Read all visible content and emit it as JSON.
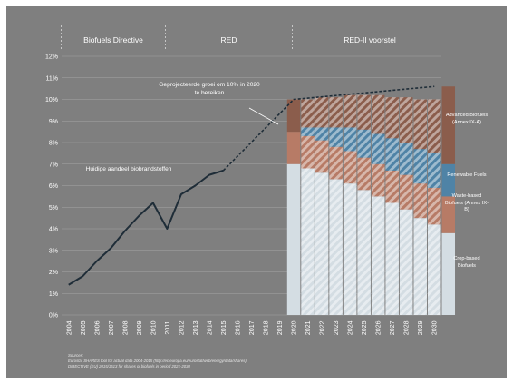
{
  "chart_data": {
    "type": "area",
    "x": [
      "2004",
      "2005",
      "2006",
      "2007",
      "2008",
      "2009",
      "2010",
      "2011",
      "2012",
      "2013",
      "2014",
      "2015",
      "2016",
      "2017",
      "2018",
      "2019",
      "2020",
      "2021",
      "2022",
      "2023",
      "2024",
      "2025",
      "2026",
      "2027",
      "2028",
      "2029",
      "2030"
    ],
    "y_ticks": [
      "0%",
      "1%",
      "2%",
      "3%",
      "4%",
      "5%",
      "6%",
      "7%",
      "8%",
      "9%",
      "10%",
      "11%",
      "12%"
    ],
    "ylim": [
      0,
      12
    ],
    "grid": true,
    "historical_share": {
      "label": "Huidige aandeel biobrandstoffen",
      "x": [
        "2004",
        "2005",
        "2006",
        "2007",
        "2008",
        "2009",
        "2010",
        "2011",
        "2012",
        "2013",
        "2014",
        "2015"
      ],
      "values": [
        1.4,
        1.8,
        2.5,
        3.1,
        3.9,
        4.6,
        5.2,
        4.0,
        5.6,
        6.0,
        6.5,
        6.7
      ]
    },
    "projected_growth": {
      "label": "Geprojecteerde groei om 10% in 2020 te bereiken",
      "x": [
        "2015",
        "2020",
        "2030"
      ],
      "values": [
        6.7,
        10.0,
        10.6
      ]
    },
    "proposal_series": [
      {
        "name": "Crop-based Biofuels",
        "color": "#d4dde3",
        "values": [
          7.0,
          6.8,
          6.6,
          6.3,
          6.1,
          5.8,
          5.5,
          5.2,
          4.9,
          4.5,
          4.2,
          3.8
        ]
      },
      {
        "name": "Waste-based Biofuels (Annex IX-B)",
        "color": "#b77b66",
        "values": [
          1.5,
          1.5,
          1.5,
          1.5,
          1.5,
          1.5,
          1.5,
          1.5,
          1.6,
          1.6,
          1.7,
          1.7
        ]
      },
      {
        "name": "Renewable Fuels",
        "color": "#4f83a6",
        "values": [
          0.0,
          0.4,
          0.6,
          0.9,
          1.1,
          1.3,
          1.4,
          1.5,
          1.5,
          1.6,
          1.6,
          1.5
        ]
      },
      {
        "name": "Advanced Biofuels (Annex IX-A)",
        "color": "#8b5d4c",
        "values": [
          1.5,
          1.3,
          1.4,
          1.4,
          1.5,
          1.6,
          1.8,
          1.9,
          2.1,
          2.3,
          2.5,
          3.6
        ]
      }
    ]
  },
  "phases": [
    {
      "label": "Biofuels Directive"
    },
    {
      "label": "RED"
    },
    {
      "label": "RED-II voorstel"
    }
  ],
  "annotations": {
    "projection": "Geprojecteerde groei om 10% in 2020 te bereiken",
    "current": "Huidige aandeel biobrandstoffen"
  },
  "right_labels": {
    "advanced": "Advanced Biofuels (Annex IX-A)",
    "renewable": "Renewable Fuels",
    "waste": "Waste-based Biofuels (Annex IX-B)",
    "crop": "Crop-based Biofuels"
  },
  "sources": {
    "heading": "Sources:",
    "line1": "Eurostat SHARES tool for actual data 2004-2015 (http://ec.europa.eu/eurostat/web/energy/data/shares)",
    "line2": "DIRECTIVE (EU) 2015/1513 for shares of biofuels in period 2021-2030"
  },
  "colors": {
    "background": "#7f7f7f",
    "gridline": "#a6a6a6",
    "line": "#1f2d38",
    "text": "#ffffff"
  }
}
